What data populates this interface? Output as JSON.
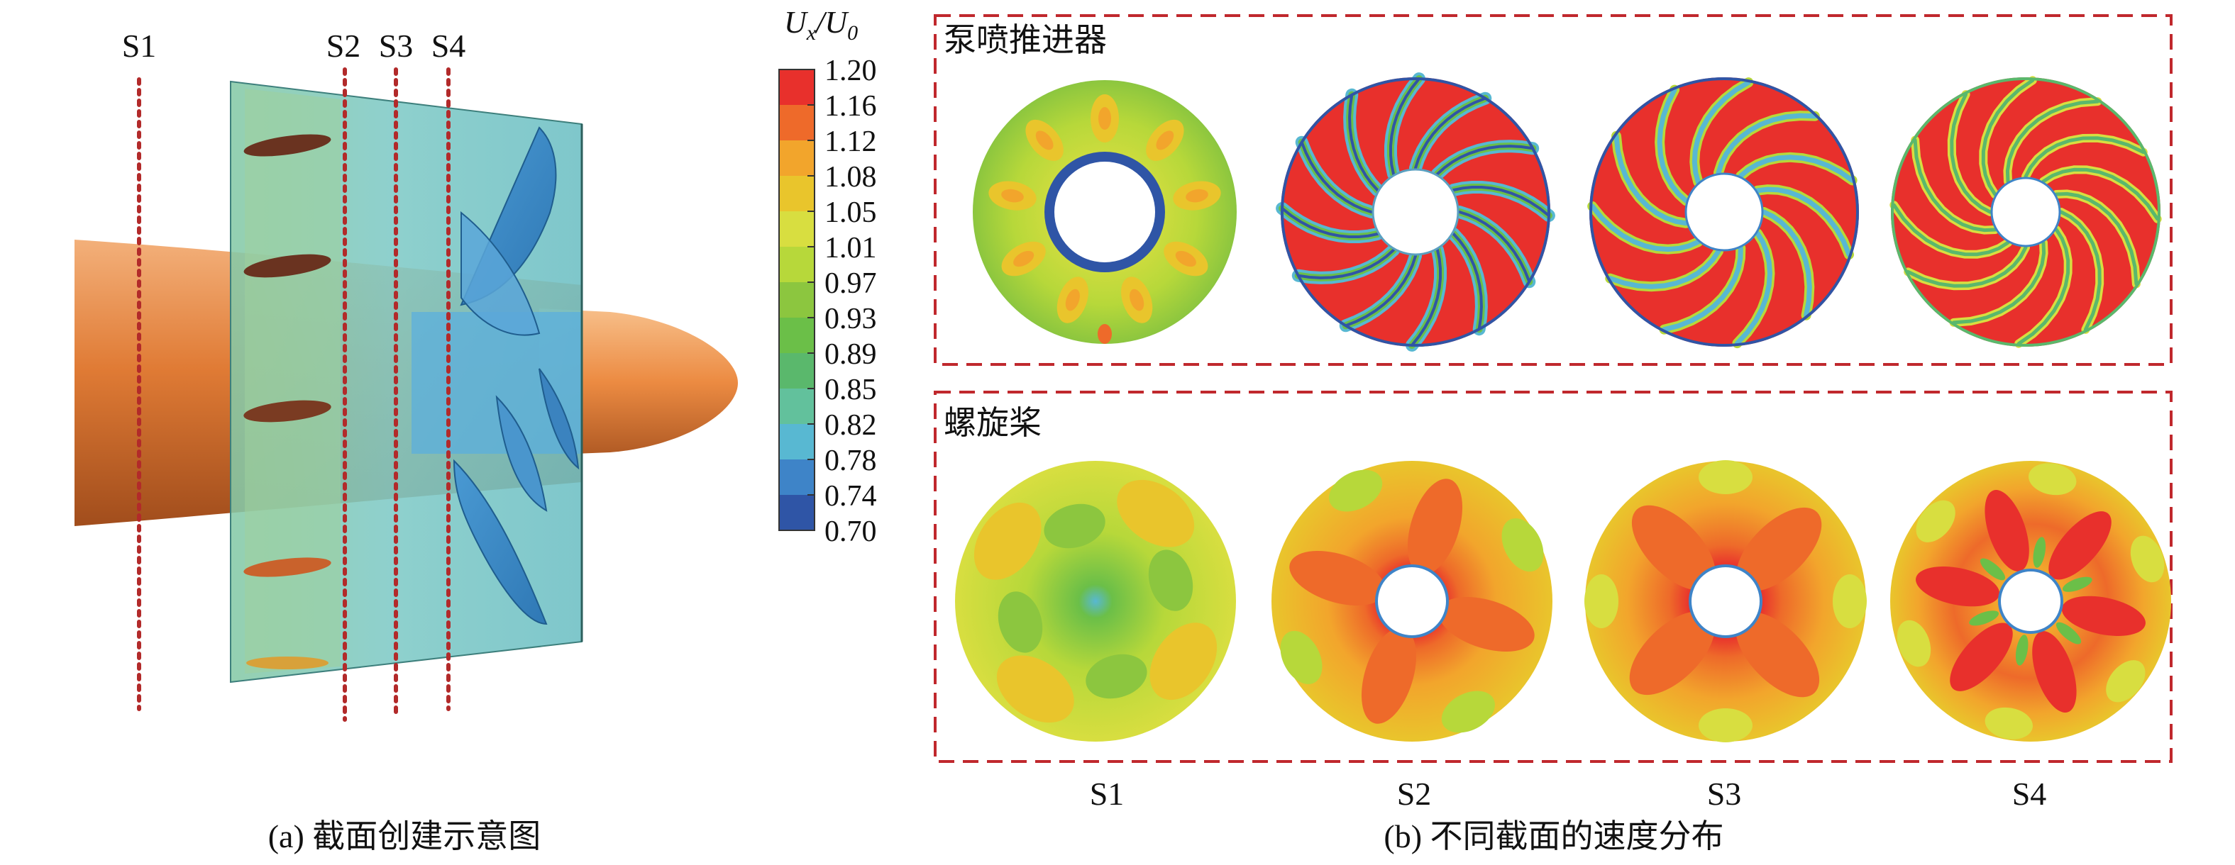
{
  "panel_a": {
    "section_labels": [
      "S1",
      "S2",
      "S3",
      "S4"
    ],
    "caption": "(a) 截面创建示意图"
  },
  "colorbar": {
    "title_main": "U",
    "title_sub_x": "x",
    "title_slash": "/",
    "title_denom": "U",
    "title_sub_0": "0",
    "ticks": [
      "1.20",
      "1.16",
      "1.12",
      "1.08",
      "1.05",
      "1.01",
      "0.97",
      "0.93",
      "0.89",
      "0.85",
      "0.82",
      "0.78",
      "0.74",
      "0.70"
    ],
    "colors": [
      "#e8302c",
      "#ee6a2a",
      "#f2a52c",
      "#e9c52c",
      "#d8de40",
      "#b7d83a",
      "#8cc63f",
      "#6bbf48",
      "#5ab86c",
      "#62c19c",
      "#58b8d2",
      "#3e84c8",
      "#2f55a6"
    ]
  },
  "panel_b": {
    "group_pump_label": "泵喷推进器",
    "group_prop_label": "螺旋桨",
    "column_labels": [
      "S1",
      "S2",
      "S3",
      "S4"
    ],
    "caption": "(b) 不同截面的速度分布"
  },
  "colors": {
    "dashed_box": "#c0282d",
    "section_line": "#b22a2a",
    "hub_orange": "#e6803a",
    "duct_cyan": "#7cc9c2",
    "blade_blue": "#3f8fc7"
  }
}
